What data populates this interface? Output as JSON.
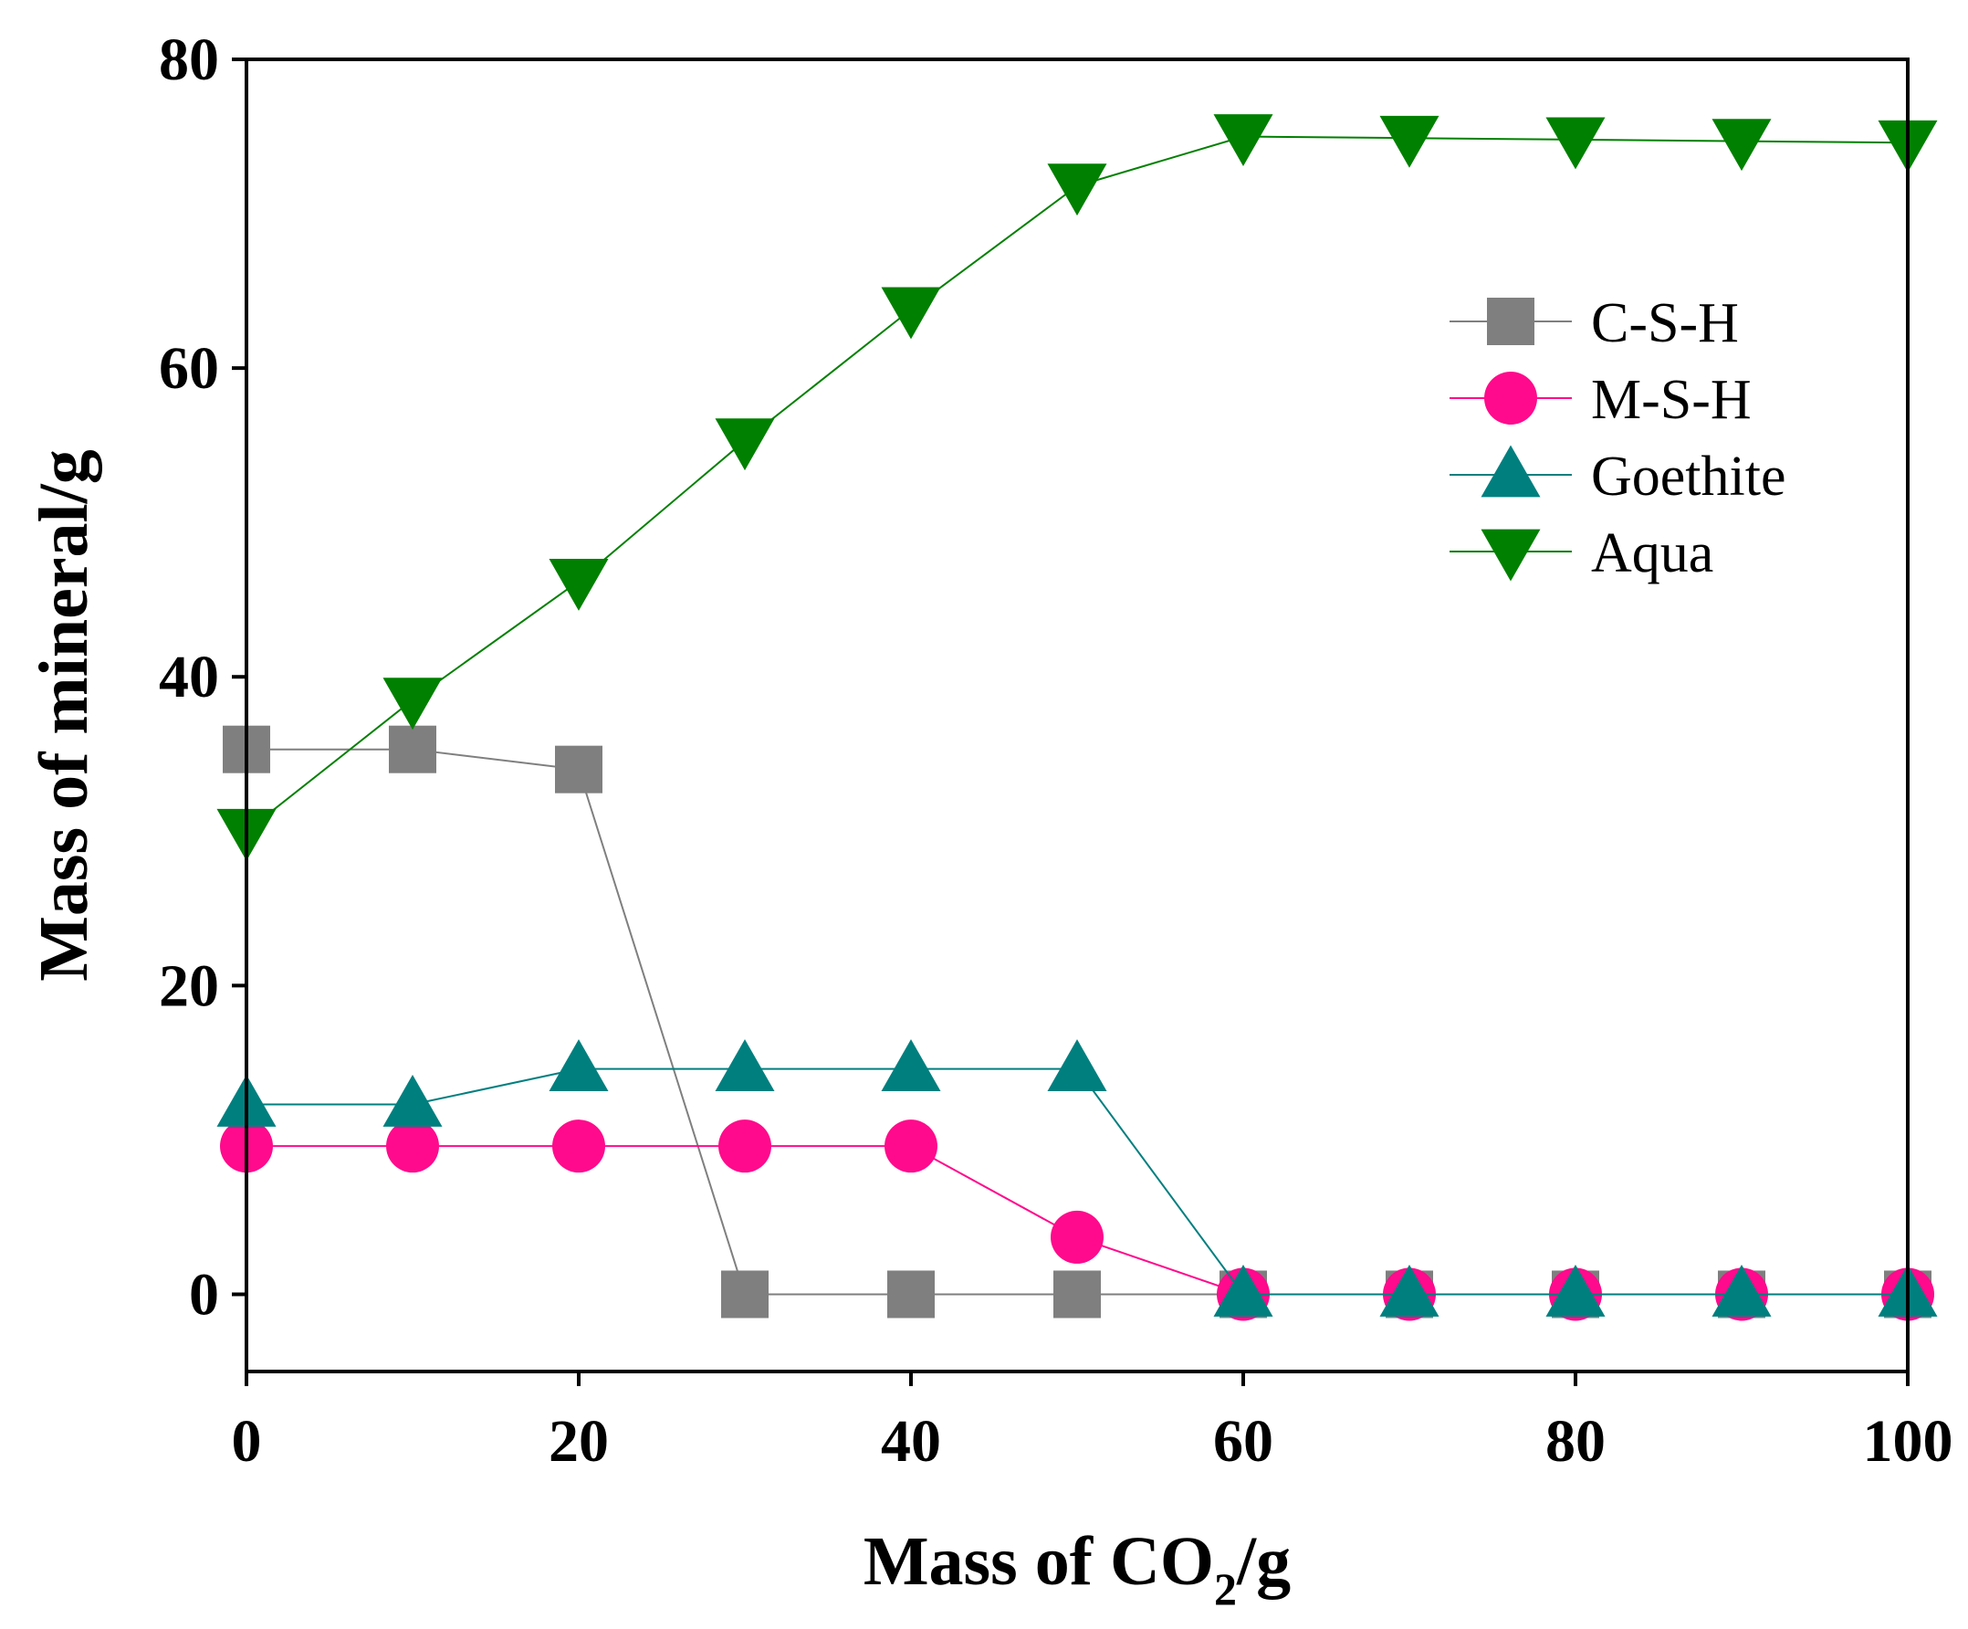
{
  "chart_data": {
    "type": "line",
    "title": "",
    "xlabel": {
      "prefix": "Mass of CO",
      "subscript": "2",
      "suffix": "/g"
    },
    "ylabel": "Mass of mineral/g",
    "xlim": [
      0,
      100
    ],
    "ylim": [
      -5,
      80
    ],
    "xticks": [
      0,
      20,
      40,
      60,
      80,
      100
    ],
    "yticks": [
      0,
      20,
      40,
      60,
      80
    ],
    "x": [
      0,
      10,
      20,
      30,
      40,
      50,
      60,
      70,
      80,
      90,
      100
    ],
    "legend_position": "upper-right",
    "series": [
      {
        "name": "C-S-H",
        "marker": "square",
        "color": "#7f7f7f",
        "values": [
          35.3,
          35.3,
          34.0,
          0,
          0,
          0,
          0,
          0,
          0,
          0,
          0
        ]
      },
      {
        "name": "M-S-H",
        "marker": "circle",
        "color": "#ff0a8c",
        "values": [
          9.6,
          9.6,
          9.6,
          9.6,
          9.6,
          3.7,
          0,
          0,
          0,
          0,
          0
        ]
      },
      {
        "name": "Goethite",
        "marker": "triangle-up",
        "color": "#007f7f",
        "values": [
          12.3,
          12.3,
          14.6,
          14.6,
          14.6,
          14.6,
          0,
          0,
          0,
          0,
          0
        ]
      },
      {
        "name": "Aqua",
        "marker": "triangle-down",
        "color": "#008000",
        "values": [
          30.0,
          38.5,
          46.2,
          55.3,
          63.8,
          71.8,
          75.0,
          74.9,
          74.8,
          74.7,
          74.6
        ]
      }
    ]
  }
}
